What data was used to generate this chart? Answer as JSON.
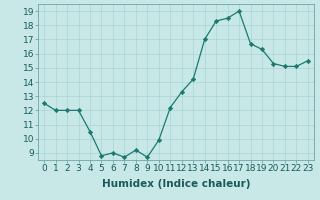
{
  "x": [
    0,
    1,
    2,
    3,
    4,
    5,
    6,
    7,
    8,
    9,
    10,
    11,
    12,
    13,
    14,
    15,
    16,
    17,
    18,
    19,
    20,
    21,
    22,
    23
  ],
  "y": [
    12.5,
    12.0,
    12.0,
    12.0,
    10.5,
    8.8,
    9.0,
    8.7,
    9.2,
    8.7,
    9.9,
    12.2,
    13.3,
    14.2,
    17.0,
    18.3,
    18.5,
    19.0,
    16.7,
    16.3,
    15.3,
    15.1,
    15.1,
    15.5
  ],
  "line_color": "#1a7a6e",
  "marker_color": "#1a7a6e",
  "bg_color": "#c8e8e8",
  "grid_color": "#aad4d4",
  "xlabel": "Humidex (Indice chaleur)",
  "xlim": [
    -0.5,
    23.5
  ],
  "ylim": [
    8.5,
    19.5
  ],
  "yticks": [
    9,
    10,
    11,
    12,
    13,
    14,
    15,
    16,
    17,
    18,
    19
  ],
  "xticks": [
    0,
    1,
    2,
    3,
    4,
    5,
    6,
    7,
    8,
    9,
    10,
    11,
    12,
    13,
    14,
    15,
    16,
    17,
    18,
    19,
    20,
    21,
    22,
    23
  ],
  "xtick_labels": [
    "0",
    "1",
    "2",
    "3",
    "4",
    "5",
    "6",
    "7",
    "8",
    "9",
    "10",
    "11",
    "12",
    "13",
    "14",
    "15",
    "16",
    "17",
    "18",
    "19",
    "20",
    "21",
    "22",
    "23"
  ],
  "font_color": "#1a5a5a",
  "xlabel_fontsize": 7.5,
  "tick_fontsize": 6.5
}
